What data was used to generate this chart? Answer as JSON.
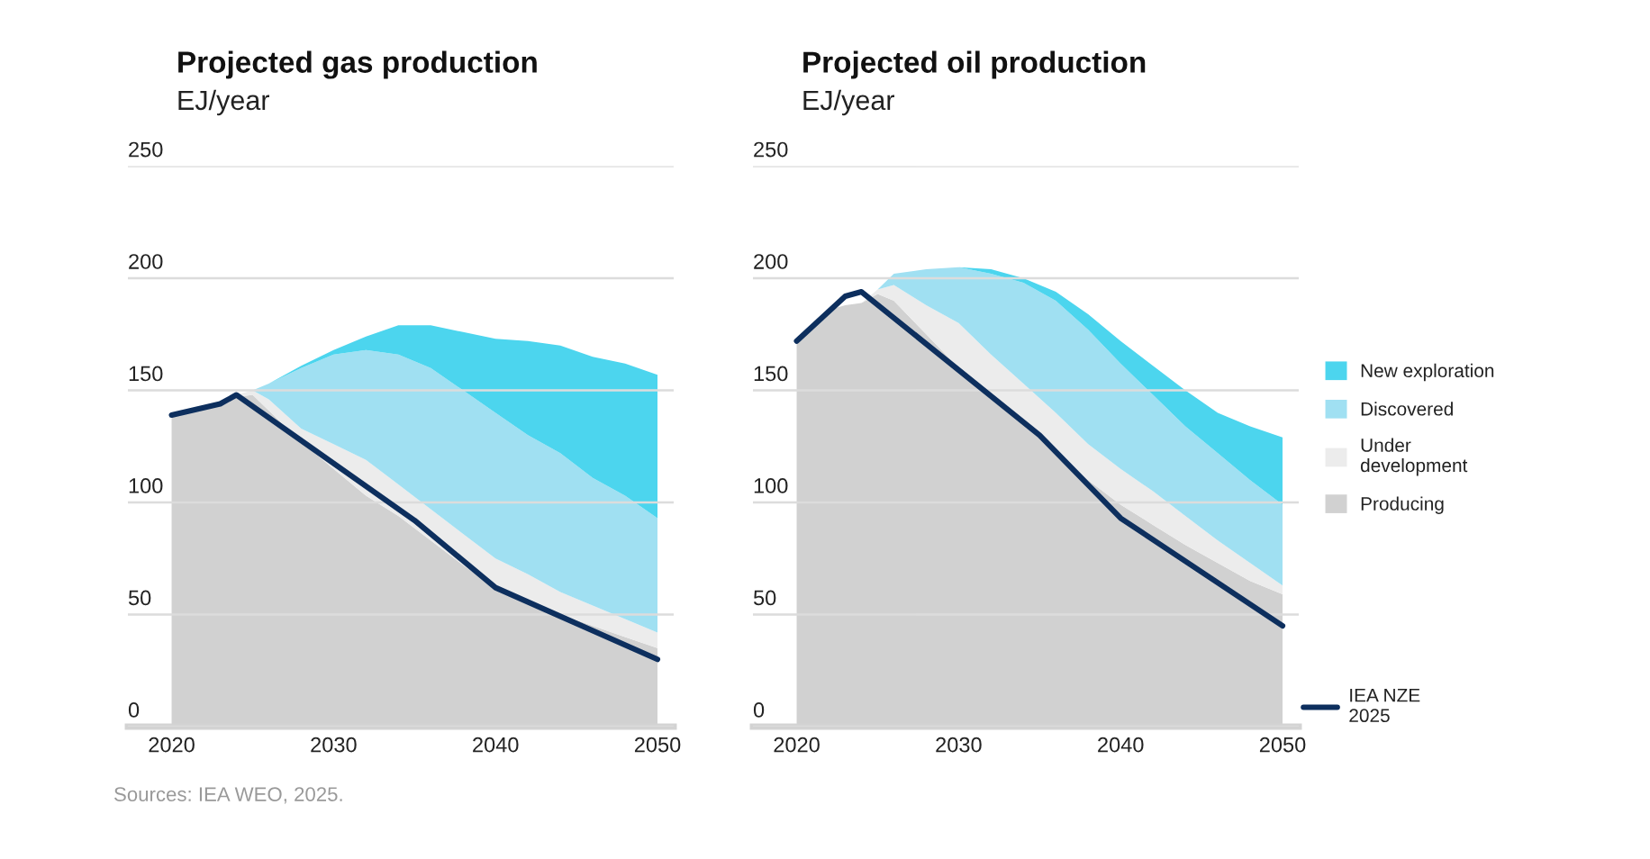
{
  "chart_data": [
    {
      "type": "area",
      "title": "Projected gas production",
      "subtitle": "EJ/year",
      "stacked": true,
      "x": [
        2020,
        2022,
        2023,
        2024,
        2025,
        2026,
        2028,
        2030,
        2032,
        2034,
        2036,
        2038,
        2040,
        2042,
        2044,
        2046,
        2048,
        2050
      ],
      "xlim": [
        2017.3,
        2051
      ],
      "xticks": [
        2020,
        2030,
        2040,
        2050
      ],
      "ylim": [
        0,
        250
      ],
      "yticks": [
        0,
        50,
        100,
        150,
        200,
        250
      ],
      "grid": "y",
      "series": [
        {
          "color": "#d1d1d1",
          "values": [
            138,
            143,
            144,
            147,
            148,
            141,
            127,
            115,
            103,
            94,
            83,
            72,
            62,
            56,
            50,
            45,
            40,
            35
          ]
        },
        {
          "color": "#ececec",
          "values": [
            0,
            0,
            0,
            1,
            2,
            5,
            6,
            11,
            16,
            14,
            14,
            14,
            13,
            12,
            10,
            9,
            8,
            7
          ]
        },
        {
          "color": "#a0e0f2",
          "values": [
            0,
            0,
            0,
            0,
            0,
            7,
            27,
            40,
            49,
            58,
            63,
            64,
            65,
            62,
            62,
            57,
            55,
            51
          ]
        },
        {
          "color": "#4cd5ee",
          "values": [
            0,
            0,
            0,
            0,
            0,
            0,
            1,
            2,
            6,
            13,
            19,
            26,
            33,
            42,
            48,
            54,
            59,
            64
          ]
        },
        {
          "type": "line",
          "color": "#0d2f5e",
          "x": [
            2020,
            2023,
            2024,
            2035,
            2040,
            2050
          ],
          "values": [
            139,
            144,
            148,
            92,
            62,
            30
          ]
        }
      ],
      "annotations": [
        "Sources: IEA WEO, 2025."
      ]
    },
    {
      "type": "area",
      "title": "Projected oil production",
      "subtitle": "EJ/year",
      "stacked": true,
      "x": [
        2020,
        2022,
        2023,
        2024,
        2025,
        2026,
        2028,
        2030,
        2032,
        2034,
        2036,
        2038,
        2040,
        2042,
        2044,
        2046,
        2048,
        2050
      ],
      "xlim": [
        2017.3,
        2051
      ],
      "xticks": [
        2020,
        2030,
        2040,
        2050
      ],
      "ylim": [
        0,
        250
      ],
      "yticks": [
        0,
        50,
        100,
        150,
        200,
        250
      ],
      "grid": "y",
      "legend": "right",
      "series": [
        {
          "name": "Producing",
          "color": "#d1d1d1",
          "values": [
            172,
            186,
            188,
            189,
            193,
            190,
            175,
            160,
            148,
            136,
            123,
            110,
            99,
            90,
            81,
            73,
            65,
            59
          ]
        },
        {
          "name": "Under\ndevelopment",
          "color": "#ececec",
          "values": [
            0,
            0,
            0,
            0,
            2,
            7,
            13,
            20,
            18,
            17,
            17,
            16,
            16,
            15,
            13,
            10,
            8,
            4
          ]
        },
        {
          "name": "Discovered",
          "color": "#a0e0f2",
          "values": [
            0,
            0,
            0,
            0,
            0,
            5,
            16,
            25,
            36,
            45,
            50,
            51,
            47,
            43,
            40,
            39,
            37,
            36
          ]
        },
        {
          "name": "New exploration",
          "color": "#4cd5ee",
          "values": [
            0,
            0,
            0,
            0,
            0,
            0,
            0,
            0,
            2,
            2,
            4,
            7,
            10,
            13,
            16,
            18,
            24,
            30
          ]
        },
        {
          "type": "line",
          "name": "IEA NZE\n2025",
          "color": "#0d2f5e",
          "x": [
            2020,
            2023,
            2024,
            2035,
            2040,
            2050
          ],
          "values": [
            172,
            192,
            194,
            130,
            93,
            45
          ]
        }
      ]
    }
  ]
}
